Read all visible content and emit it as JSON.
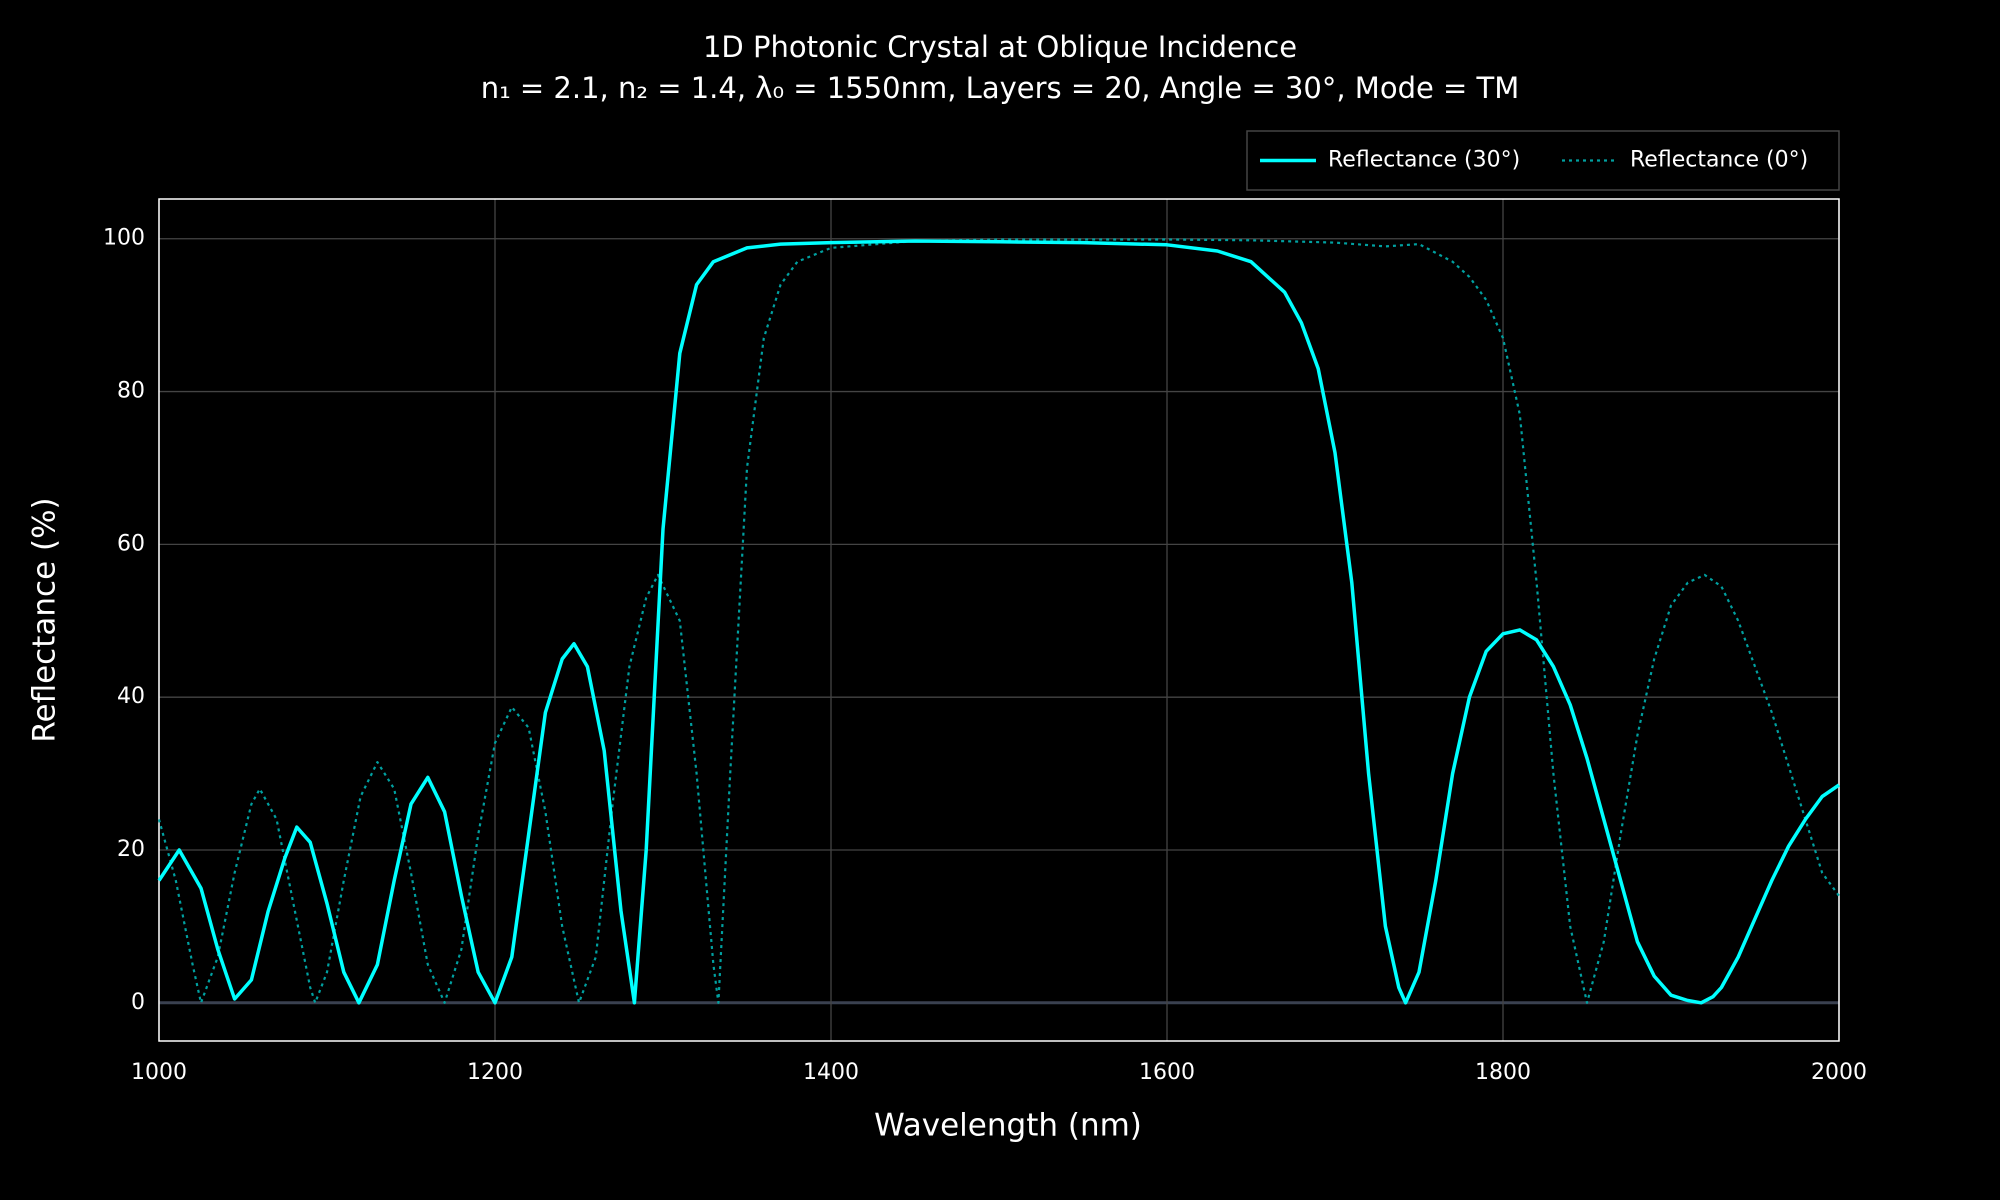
{
  "chart_data": {
    "type": "line",
    "title": "1D Photonic Crystal at Oblique Incidence",
    "subtitle": "n₁ = 2.1, n₂ = 1.4, λ₀ = 1550nm, Layers = 20, Angle = 30°, Mode = TM",
    "x_label": "Wavelength (nm)",
    "y_label": "Reflectance (%)",
    "xlim": [
      1000,
      2000
    ],
    "ylim": [
      -5,
      105.2
    ],
    "xticks": [
      1000,
      1200,
      1400,
      1600,
      1800,
      2000
    ],
    "yticks": [
      0,
      20,
      40,
      60,
      80,
      100
    ],
    "grid": true,
    "legend": "top-right",
    "series": [
      {
        "name": "Reflectance (30°)",
        "color": "#00ffff",
        "dash": "solid",
        "x": [
          1000,
          1012,
          1025,
          1035,
          1045,
          1055,
          1065,
          1075,
          1082,
          1090,
          1100,
          1110,
          1119,
          1130,
          1140,
          1150,
          1160,
          1170,
          1180,
          1190,
          1200,
          1210,
          1220,
          1230,
          1240,
          1247,
          1255,
          1265,
          1275,
          1283,
          1290,
          1300,
          1310,
          1320,
          1330,
          1350,
          1370,
          1400,
          1450,
          1500,
          1550,
          1600,
          1630,
          1650,
          1670,
          1680,
          1690,
          1700,
          1710,
          1720,
          1730,
          1738,
          1742,
          1750,
          1760,
          1770,
          1780,
          1790,
          1800,
          1810,
          1820,
          1830,
          1840,
          1850,
          1860,
          1870,
          1880,
          1890,
          1900,
          1910,
          1918,
          1925,
          1930,
          1940,
          1950,
          1960,
          1970,
          1980,
          1990,
          2000
        ],
        "values": [
          16,
          20,
          15,
          7,
          0.5,
          3,
          12,
          19,
          23,
          21,
          13,
          4,
          0,
          5,
          16,
          26,
          29.5,
          25,
          14,
          4,
          0,
          6,
          22,
          38,
          45,
          47,
          44,
          33,
          12,
          0,
          20,
          62,
          85,
          94,
          97,
          98.8,
          99.3,
          99.5,
          99.7,
          99.6,
          99.5,
          99.2,
          98.4,
          97,
          93,
          89,
          83,
          72,
          55,
          30,
          10,
          2,
          0,
          4,
          16,
          30,
          40,
          46,
          48.3,
          48.8,
          47.5,
          44,
          39,
          32,
          24,
          16,
          8,
          3.5,
          1,
          0.3,
          0,
          0.8,
          2,
          6,
          11,
          16,
          20.5,
          24,
          27,
          28.5
        ]
      },
      {
        "name": "Reflectance (0°)",
        "color": "#00a0a0",
        "dash": "dot",
        "x": [
          1000,
          1010,
          1020,
          1025,
          1035,
          1045,
          1055,
          1060,
          1070,
          1080,
          1090,
          1093,
          1100,
          1110,
          1120,
          1130,
          1140,
          1150,
          1160,
          1170,
          1180,
          1190,
          1200,
          1210,
          1220,
          1230,
          1240,
          1250,
          1260,
          1270,
          1280,
          1290,
          1297,
          1310,
          1320,
          1330,
          1333,
          1340,
          1350,
          1360,
          1370,
          1380,
          1400,
          1450,
          1500,
          1600,
          1650,
          1700,
          1730,
          1750,
          1770,
          1780,
          1790,
          1800,
          1810,
          1820,
          1830,
          1840,
          1850,
          1860,
          1870,
          1880,
          1890,
          1900,
          1910,
          1920,
          1930,
          1940,
          1950,
          1960,
          1970,
          1980,
          1990,
          2000
        ],
        "values": [
          24,
          16,
          5,
          0,
          6,
          17,
          26,
          28,
          24,
          13,
          2,
          0,
          4,
          16,
          27,
          31.5,
          28,
          17,
          5,
          0,
          7,
          22,
          34,
          38.7,
          36,
          25,
          10,
          0,
          6,
          26,
          44,
          53,
          56,
          50,
          30,
          5,
          0,
          30,
          70,
          87,
          94,
          97,
          98.8,
          99.7,
          99.9,
          99.9,
          99.8,
          99.5,
          99,
          99.3,
          97,
          95,
          92,
          87,
          77,
          55,
          30,
          10,
          0,
          8,
          22,
          35,
          45,
          52,
          55,
          56,
          54.5,
          50,
          44,
          38,
          31,
          24,
          17,
          14
        ]
      }
    ]
  }
}
